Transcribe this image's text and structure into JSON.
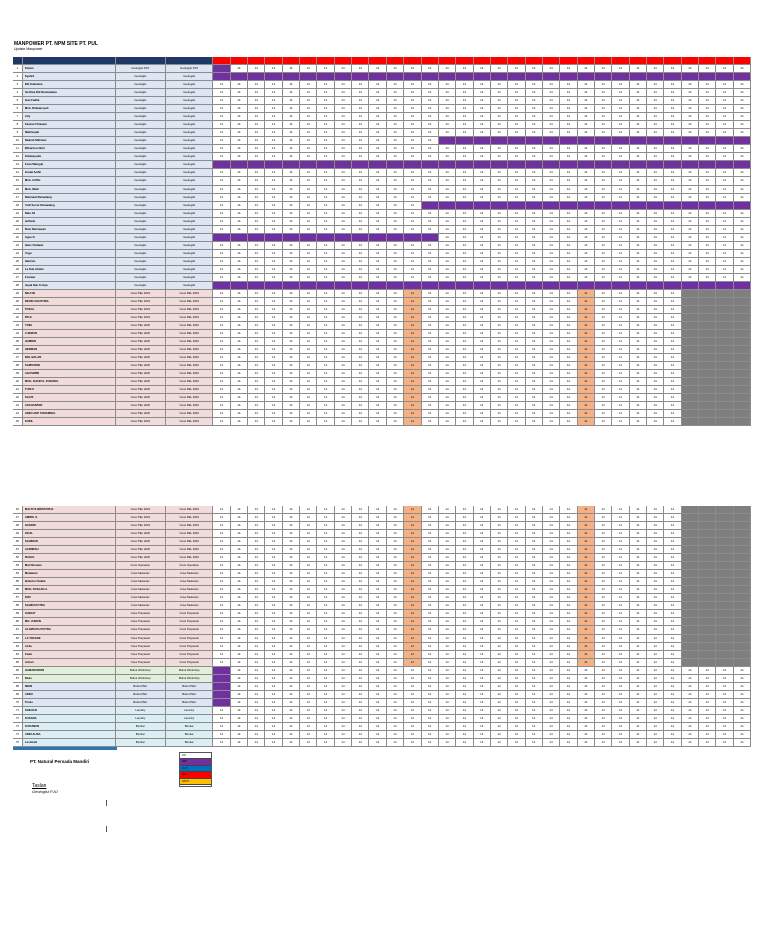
{
  "doc": {
    "title": "MANPOWER PT. NPM SITE PT. PUL",
    "subtitle": "Update Manpower",
    "company": "PT. Natural Persada Mandiri",
    "signature_name": "Taslan",
    "signature_position": "Geologist PJO"
  },
  "table": {
    "headers": [
      "NO",
      "NAMA",
      "POSITION",
      "POSITION"
    ],
    "day_count": 31,
    "rows_part1": [
      {
        "no": "1",
        "name": "Taslan",
        "pos": "Geologist PJO",
        "bg": "#dde6f2",
        "pattern": "g"
      },
      {
        "no": "2",
        "name": "Syahril",
        "pos": "Geologist",
        "bg": "#dde6f2",
        "pattern": "p0"
      },
      {
        "no": "3",
        "name": "Rili Sukmana",
        "pos": "Geologist",
        "bg": "#dde6f2",
        "pattern": "n"
      },
      {
        "no": "4",
        "name": "Iza Dwa Riti Rusbawana",
        "pos": "Geologist",
        "bg": "#dde6f2",
        "pattern": "n"
      },
      {
        "no": "5",
        "name": "Ivan Fadila",
        "pos": "Geologist",
        "bg": "#dde6f2",
        "pattern": "n"
      },
      {
        "no": "6",
        "name": "Muh. Ridwansyah",
        "pos": "Geologist",
        "bg": "#dde6f2",
        "pattern": "n"
      },
      {
        "no": "7",
        "name": "Arly",
        "pos": "Geologist",
        "bg": "#dde6f2",
        "pattern": "n"
      },
      {
        "no": "8",
        "name": "Fauzan Fitrawan",
        "pos": "Geologist",
        "bg": "#dde6f2",
        "pattern": "n"
      },
      {
        "no": "9",
        "name": "Nailinuqah",
        "pos": "Geologist",
        "bg": "#dde6f2",
        "pattern": "n"
      },
      {
        "no": "10",
        "name": "Nadrah Mahmuz",
        "pos": "Geologist",
        "bg": "#dde6f2",
        "pattern": "p13"
      },
      {
        "no": "11",
        "name": "Winariono Nuri",
        "pos": "Geologist",
        "bg": "#dde6f2",
        "pattern": "n"
      },
      {
        "no": "12",
        "name": "Indawayuda",
        "pos": "Geologist",
        "bg": "#dde6f2",
        "pattern": "n"
      },
      {
        "no": "13",
        "name": "Irsan Wangoji",
        "pos": "Geologist",
        "bg": "#dde6f2",
        "pattern": "p0"
      },
      {
        "no": "14",
        "name": "Ismail Aeifin",
        "pos": "Geologist",
        "bg": "#dde6f2",
        "pattern": "n"
      },
      {
        "no": "15",
        "name": "Muh. Ariffin",
        "pos": "Geologist",
        "bg": "#dde6f2",
        "pattern": "n"
      },
      {
        "no": "16",
        "name": "Muh. Wadi",
        "pos": "Geologist",
        "bg": "#dde6f2",
        "pattern": "n"
      },
      {
        "no": "17",
        "name": "Rahmadi Ramadang",
        "pos": "Geologist",
        "bg": "#dde6f2",
        "pattern": "n"
      },
      {
        "no": "18",
        "name": "Yudi Sonor Ramadang",
        "pos": "Geologist",
        "bg": "#dde6f2",
        "pattern": "p12"
      },
      {
        "no": "19",
        "name": "Rian Ali",
        "pos": "Geologist",
        "bg": "#dde6f2",
        "pattern": "n"
      },
      {
        "no": "20",
        "name": "Julhizar",
        "pos": "Geologist",
        "bg": "#dde6f2",
        "pattern": "n"
      },
      {
        "no": "21",
        "name": "Rusi Darmawan",
        "pos": "Geologist",
        "bg": "#dde6f2",
        "pattern": "n"
      },
      {
        "no": "22",
        "name": "Agus D",
        "pos": "Geologist",
        "bg": "#dde6f2",
        "pattern": "s"
      },
      {
        "no": "23",
        "name": "Hans Ciahaan",
        "pos": "Geologist",
        "bg": "#dde6f2",
        "pattern": "n"
      },
      {
        "no": "24",
        "name": "Yoga",
        "pos": "Geologist",
        "bg": "#dde6f2",
        "pattern": "n"
      },
      {
        "no": "25",
        "name": "Hairnan",
        "pos": "Geologist",
        "bg": "#dde6f2",
        "pattern": "n"
      },
      {
        "no": "26",
        "name": "La Ode Ahdan",
        "pos": "Geologist",
        "bg": "#dde6f2",
        "pattern": "n"
      },
      {
        "no": "27",
        "name": "Irsanaw",
        "pos": "Geologist",
        "bg": "#dde6f2",
        "pattern": "n"
      },
      {
        "no": "28",
        "name": "Jupal Dan Cohya",
        "pos": "Geologist",
        "bg": "#dde6f2",
        "pattern": "p0"
      },
      {
        "no": "29",
        "name": "NILA'IB",
        "pos": "Crew PEL 2023",
        "bg": "#f2dcdb",
        "pattern": "o"
      },
      {
        "no": "30",
        "name": "DEVIN AGUSTINA",
        "pos": "Crew PEL 2023",
        "bg": "#f2dcdb",
        "pattern": "o"
      },
      {
        "no": "31",
        "name": "TOKAL",
        "pos": "Crew PEL 2023",
        "bg": "#f2dcdb",
        "pattern": "o"
      },
      {
        "no": "32",
        "name": "PAUL",
        "pos": "Crew PEL 2023",
        "bg": "#f2dcdb",
        "pattern": "o"
      },
      {
        "no": "33",
        "name": "YOBI",
        "pos": "Crew PEL 2020",
        "bg": "#f2dcdb",
        "pattern": "o"
      },
      {
        "no": "34",
        "name": "LUKMAN",
        "pos": "Crew PEL 2020",
        "bg": "#f2dcdb",
        "pattern": "o"
      },
      {
        "no": "35",
        "name": "HAMDIN",
        "pos": "Crew PEL 2020",
        "bg": "#f2dcdb",
        "pattern": "o"
      },
      {
        "no": "36",
        "name": "HERMAN",
        "pos": "Crew PEL 2020",
        "bg": "#f2dcdb",
        "pattern": "o"
      },
      {
        "no": "37",
        "name": "NOL BALAN",
        "pos": "Crew PEL 2020",
        "bg": "#f2dcdb",
        "pattern": "o"
      },
      {
        "no": "38",
        "name": "SAMSUDIN",
        "pos": "Crew PEL 2020",
        "bg": "#f2dcdb",
        "pattern": "o"
      },
      {
        "no": "39",
        "name": "AGUSWIRI",
        "pos": "Crew PEL 2020",
        "bg": "#f2dcdb",
        "pattern": "o"
      },
      {
        "no": "40",
        "name": "MUH. SHAIFUL JUNAIDIL",
        "pos": "Crew PEL 2020",
        "bg": "#f2dcdb",
        "pattern": "o"
      },
      {
        "no": "41",
        "name": "TUDI S",
        "pos": "Crew PEL 2020",
        "bg": "#f2dcdb",
        "pattern": "o"
      },
      {
        "no": "42",
        "name": "SALDI",
        "pos": "Crew PEL 2020",
        "bg": "#f2dcdb",
        "pattern": "o"
      },
      {
        "no": "43",
        "name": "ASCHANTER",
        "pos": "Crew PEL 2020",
        "bg": "#f2dcdb",
        "pattern": "o"
      },
      {
        "no": "44",
        "name": "ANDI HAIP TAMAMNUL",
        "pos": "Crew PEL 2020",
        "bg": "#f2dcdb",
        "pattern": "o"
      },
      {
        "no": "45",
        "name": "SUKIL",
        "pos": "Crew PEL 2023",
        "bg": "#f2dcdb",
        "pattern": "o"
      }
    ],
    "rows_part2": [
      {
        "no": "46",
        "name": "MALTUS BRISTOPHA",
        "pos": "Crew PEL 2023",
        "bg": "#f2dcdb",
        "pattern": "o"
      },
      {
        "no": "47",
        "name": "AMIRIL S.",
        "pos": "Crew PEL 2023",
        "bg": "#f2dcdb",
        "pattern": "o"
      },
      {
        "no": "48",
        "name": "HASDIN",
        "pos": "Crew PEL 2023",
        "bg": "#f2dcdb",
        "pattern": "o"
      },
      {
        "no": "49",
        "name": "ZICAL",
        "pos": "Crew PEL 2020",
        "bg": "#f2dcdb",
        "pattern": "o"
      },
      {
        "no": "50",
        "name": "SAHIMAD",
        "pos": "Crew PEL 2020",
        "bg": "#f2dcdb",
        "pattern": "o"
      },
      {
        "no": "51",
        "name": "ALIMIRAH",
        "pos": "Crew PEL 2020",
        "bg": "#f2dcdb",
        "pattern": "o"
      },
      {
        "no": "52",
        "name": "RAHUL",
        "pos": "Crew PEL 2020",
        "bg": "#f2dcdb",
        "pattern": "o"
      },
      {
        "no": "53",
        "name": "Muh Rusdan",
        "pos": "Crew Operation",
        "bg": "#f2dcdb",
        "pattern": "o"
      },
      {
        "no": "54",
        "name": "Muliawan",
        "pos": "Crew Mekanan",
        "bg": "#f2dcdb",
        "pattern": "o"
      },
      {
        "no": "55",
        "name": "Briantori Sakila",
        "pos": "Crew Mekanan",
        "bg": "#f2dcdb",
        "pattern": "o"
      },
      {
        "no": "56",
        "name": "MUH. RUSLAN A.",
        "pos": "Crew Mekanan",
        "bg": "#f2dcdb",
        "pattern": "o"
      },
      {
        "no": "57",
        "name": "ICIN",
        "pos": "Crew Mekanan",
        "bg": "#f2dcdb",
        "pattern": "o"
      },
      {
        "no": "58",
        "name": "SAHIDAYUTRA",
        "pos": "Crew Mekanan",
        "bg": "#f2dcdb",
        "pattern": "o"
      },
      {
        "no": "59",
        "name": "SUBAIT",
        "pos": "Crew Preparasi",
        "bg": "#f2dcdb",
        "pattern": "o"
      },
      {
        "no": "60",
        "name": "MO. JUMAN",
        "pos": "Crew Preparasi",
        "bg": "#f2dcdb",
        "pattern": "o"
      },
      {
        "no": "61",
        "name": "ALAMSYAH PUTRA",
        "pos": "Crew Preparasi",
        "bg": "#f2dcdb",
        "pattern": "o"
      },
      {
        "no": "62",
        "name": "LA TOFANE",
        "pos": "Crew Preparasi",
        "bg": "#f2dcdb",
        "pattern": "o"
      },
      {
        "no": "63",
        "name": "Lirda",
        "pos": "Crew Preparasi",
        "bg": "#f2dcdb",
        "pattern": "o"
      },
      {
        "no": "64",
        "name": "Irwan",
        "pos": "Crew Preparasi",
        "bg": "#f2dcdb",
        "pattern": "o"
      },
      {
        "no": "65",
        "name": "Ashari",
        "pos": "Crew Preparasi",
        "bg": "#f2dcdb",
        "pattern": "o"
      },
      {
        "no": "66",
        "name": "HAMARUDDIN",
        "pos": "Bubut Workshop",
        "bg": "#e2efda",
        "pattern": "g"
      },
      {
        "no": "67",
        "name": "Redo",
        "pos": "Bubut Workshop",
        "bg": "#e2efda",
        "pattern": "g"
      },
      {
        "no": "68",
        "name": "IWAN",
        "pos": "Bubut PEC",
        "bg": "#dde6f2",
        "pattern": "g"
      },
      {
        "no": "69",
        "name": "ADDU",
        "pos": "Bubut PEC",
        "bg": "#dde6f2",
        "pattern": "g"
      },
      {
        "no": "70",
        "name": "Tosko",
        "pos": "Bubut PEC",
        "bg": "#dde6f2",
        "pattern": "g"
      },
      {
        "no": "71",
        "name": "SOEHAR",
        "pos": "Laundry",
        "bg": "#dbeef4",
        "pattern": "n"
      },
      {
        "no": "72",
        "name": "SUSANA",
        "pos": "Laundry",
        "bg": "#dbeef4",
        "pattern": "n"
      },
      {
        "no": "73",
        "name": "SUSUWAN",
        "pos": "Bunkar",
        "bg": "#dbeef4",
        "pattern": "n"
      },
      {
        "no": "74",
        "name": "ANDI ALMA",
        "pos": "Bunkar",
        "bg": "#dbeef4",
        "pattern": "n"
      },
      {
        "no": "75",
        "name": "Lesmanti",
        "pos": "Bunkar",
        "bg": "#dbeef4",
        "pattern": "n"
      }
    ],
    "cell_value": "14",
    "legend": [
      {
        "label": "ON",
        "color": "#ffffff"
      },
      {
        "label": "OFF",
        "color": "#7030a0"
      },
      {
        "label": "CUTI",
        "color": "#0070c0"
      },
      {
        "label": "IZIN",
        "color": "#ff0000"
      },
      {
        "label": "SAKIT",
        "color": "#ffc000"
      }
    ]
  }
}
